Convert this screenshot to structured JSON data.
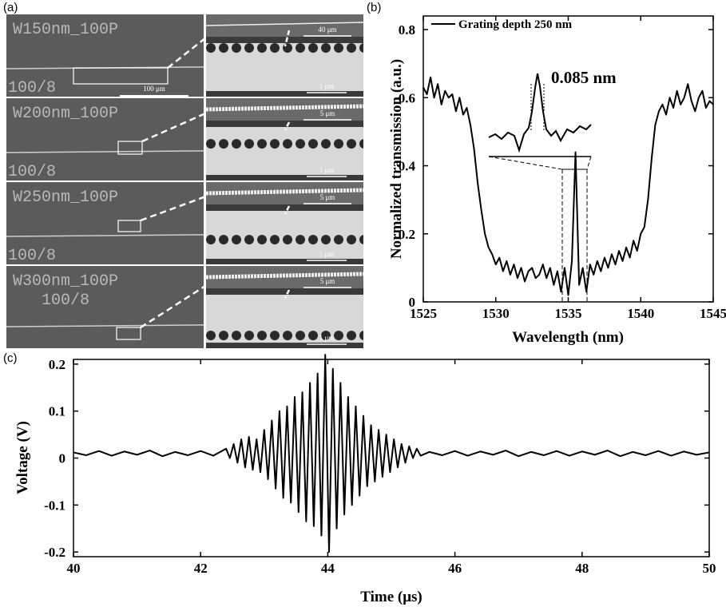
{
  "panel_a": {
    "panel_label": "(a)",
    "rows": [
      {
        "label": "W150nm_100P",
        "sub": "100/8",
        "scale_left": "100 μm",
        "scale_top": "40 μm",
        "scale_bottom": "1 μm"
      },
      {
        "label": "W200nm_100P",
        "sub": "100/8",
        "scale_top": "5 μm",
        "scale_bottom": "1 μm"
      },
      {
        "label": "W250nm_100P",
        "sub": "100/8",
        "scale_top": "5 μm",
        "scale_bottom": "1 μm"
      },
      {
        "label": "W300nm_100P",
        "sub": "100/8",
        "scale_top": "5 μm",
        "scale_bottom": "1 μm"
      }
    ]
  },
  "chart_data": [
    {
      "type": "line",
      "panel_label": "(b)",
      "x_label": "Wavelength (nm)",
      "y_label": "Normalized transmission (a.u.)",
      "annotation": "0.085 nm",
      "x": [
        1525,
        1525.25,
        1525.5,
        1525.75,
        1526,
        1526.25,
        1526.5,
        1526.75,
        1527,
        1527.25,
        1527.5,
        1527.75,
        1528,
        1528.25,
        1528.5,
        1528.75,
        1529,
        1529.25,
        1529.5,
        1529.75,
        1530,
        1530.25,
        1530.5,
        1530.75,
        1531,
        1531.25,
        1531.5,
        1531.75,
        1532,
        1532.25,
        1532.5,
        1532.75,
        1533,
        1533.25,
        1533.5,
        1533.75,
        1534,
        1534.25,
        1534.5,
        1534.75,
        1535,
        1535.25,
        1535.5,
        1535.75,
        1536,
        1536.25,
        1536.5,
        1536.75,
        1537,
        1537.25,
        1537.5,
        1537.75,
        1538,
        1538.25,
        1538.5,
        1538.75,
        1539,
        1539.25,
        1539.5,
        1539.75,
        1540,
        1540.25,
        1540.5,
        1540.75,
        1541,
        1541.25,
        1541.5,
        1541.75,
        1542,
        1542.25,
        1542.5,
        1542.75,
        1543,
        1543.25,
        1543.5,
        1543.75,
        1544,
        1544.25,
        1544.5,
        1544.75,
        1545
      ],
      "series": [
        {
          "name": "Grating depth 250 nm",
          "color": "#000000",
          "values": [
            0.63,
            0.61,
            0.66,
            0.6,
            0.64,
            0.58,
            0.62,
            0.6,
            0.61,
            0.56,
            0.6,
            0.55,
            0.57,
            0.52,
            0.45,
            0.35,
            0.27,
            0.2,
            0.16,
            0.14,
            0.11,
            0.13,
            0.09,
            0.12,
            0.08,
            0.11,
            0.07,
            0.1,
            0.06,
            0.09,
            0.1,
            0.07,
            0.08,
            0.11,
            0.07,
            0.1,
            0.05,
            0.09,
            0.03,
            0.1,
            0.02,
            0.12,
            0.44,
            0.05,
            0.1,
            0.03,
            0.11,
            0.08,
            0.12,
            0.09,
            0.13,
            0.1,
            0.14,
            0.11,
            0.15,
            0.12,
            0.16,
            0.13,
            0.18,
            0.15,
            0.2,
            0.22,
            0.3,
            0.42,
            0.52,
            0.56,
            0.58,
            0.55,
            0.6,
            0.57,
            0.62,
            0.58,
            0.6,
            0.64,
            0.59,
            0.56,
            0.6,
            0.62,
            0.57,
            0.59,
            0.58
          ]
        }
      ],
      "xlim": [
        1525,
        1545
      ],
      "xticks": [
        1525,
        1530,
        1535,
        1540,
        1545
      ],
      "ylim": [
        0,
        0.84
      ],
      "yticks": [
        0,
        0.2,
        0.4,
        0.6,
        0.8
      ]
    },
    {
      "type": "line",
      "panel_label": "(c)",
      "x_label": "Time (μs)",
      "y_label": "Voltage (V)",
      "color": "#000000",
      "x": [
        40,
        40.2,
        40.4,
        40.6,
        40.8,
        41,
        41.2,
        41.4,
        41.6,
        41.8,
        42,
        42.2,
        42.4,
        42.46,
        42.52,
        42.58,
        42.64,
        42.7,
        42.76,
        42.82,
        42.88,
        42.94,
        43,
        43.06,
        43.12,
        43.18,
        43.24,
        43.3,
        43.36,
        43.42,
        43.48,
        43.54,
        43.6,
        43.66,
        43.72,
        43.78,
        43.84,
        43.9,
        43.96,
        44.02,
        44.08,
        44.14,
        44.2,
        44.26,
        44.32,
        44.38,
        44.44,
        44.5,
        44.56,
        44.62,
        44.68,
        44.74,
        44.8,
        44.86,
        44.92,
        44.98,
        45.04,
        45.1,
        45.16,
        45.22,
        45.28,
        45.34,
        45.4,
        45.46,
        45.6,
        45.8,
        46,
        46.2,
        46.4,
        46.6,
        46.8,
        47,
        47.2,
        47.4,
        47.6,
        47.8,
        48,
        48.2,
        48.4,
        48.6,
        48.8,
        49,
        49.2,
        49.4,
        49.6,
        49.8,
        50
      ],
      "values": [
        0.012,
        0.006,
        0.015,
        0.005,
        0.014,
        0.007,
        0.016,
        0.004,
        0.013,
        0.006,
        0.015,
        0.005,
        0.02,
        0.0,
        0.03,
        -0.01,
        0.04,
        -0.02,
        0.045,
        -0.025,
        0.04,
        -0.03,
        0.06,
        -0.045,
        0.08,
        -0.065,
        0.1,
        -0.085,
        0.11,
        -0.095,
        0.13,
        -0.115,
        0.14,
        -0.135,
        0.16,
        -0.145,
        0.18,
        -0.165,
        0.22,
        -0.2,
        0.19,
        -0.15,
        0.16,
        -0.12,
        0.13,
        -0.1,
        0.11,
        -0.08,
        0.09,
        -0.06,
        0.07,
        -0.05,
        0.06,
        -0.04,
        0.05,
        -0.03,
        0.04,
        -0.02,
        0.03,
        -0.01,
        0.025,
        0.0,
        0.02,
        0.005,
        0.013,
        0.006,
        0.015,
        0.005,
        0.014,
        0.007,
        0.016,
        0.004,
        0.013,
        0.006,
        0.015,
        0.005,
        0.014,
        0.007,
        0.016,
        0.004,
        0.013,
        0.006,
        0.015,
        0.005,
        0.014,
        0.007,
        0.012
      ],
      "xlim": [
        40,
        50
      ],
      "xticks": [
        40,
        42,
        44,
        46,
        48,
        50
      ],
      "ylim": [
        -0.21,
        0.21
      ],
      "yticks": [
        -0.2,
        -0.1,
        0,
        0.1,
        0.2
      ]
    }
  ]
}
